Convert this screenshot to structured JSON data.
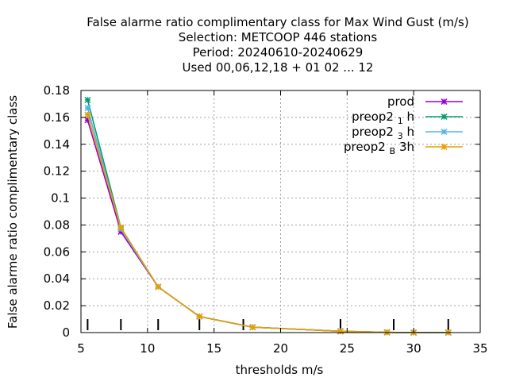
{
  "title_lines": [
    "False alarme ratio complimentary class  for Max Wind Gust (m/s)",
    "Selection: METCOOP    446 stations",
    "Period: 20240610-20240629",
    "Used  00,06,12,18 + 01 02 ... 12"
  ],
  "chart_data": {
    "type": "line",
    "xlabel": "thresholds m/s",
    "ylabel": "False alarme ratio complimentary class",
    "xlim": [
      5,
      35
    ],
    "ylim": [
      0,
      0.18
    ],
    "xticks": [
      5,
      10,
      15,
      20,
      25,
      30,
      35
    ],
    "yticks": [
      0,
      0.02,
      0.04,
      0.06,
      0.08,
      0.1,
      0.12,
      0.14,
      0.16,
      0.18
    ],
    "xticklabels": [
      "5",
      "10",
      "15",
      "20",
      "25",
      "30",
      "35"
    ],
    "yticklabels": [
      "0",
      "0.02",
      "0.04",
      "0.06",
      "0.08",
      "0.1",
      "0.12",
      "0.14",
      "0.16",
      "0.18"
    ],
    "grid": true,
    "legend_position": "top-right",
    "threshold_markers": [
      5.5,
      8,
      10.8,
      13.9,
      17.2,
      24.5,
      28.5,
      32.6
    ],
    "series": [
      {
        "name": "prod",
        "color": "#9400d3",
        "marker": "star",
        "x": [
          5.5,
          8,
          10.8,
          13.9,
          17.9,
          24.5,
          28,
          30,
          32.6
        ],
        "y": [
          0.158,
          0.075,
          0.034,
          0.012,
          0.004,
          0.001,
          0.0002,
          0.0,
          0.0
        ]
      },
      {
        "name": "preop2 1 h",
        "name_base": "preop2",
        "name_sub": "1",
        "name_rest": "h",
        "color": "#009e73",
        "marker": "star",
        "x": [
          5.5,
          8,
          10.8,
          13.9,
          17.9,
          24.5,
          28,
          30,
          32.6
        ],
        "y": [
          0.173,
          0.078,
          0.034,
          0.012,
          0.004,
          0.001,
          0.0002,
          0.0,
          0.0
        ]
      },
      {
        "name": "preop2 3 h",
        "name_base": "preop2",
        "name_sub": "3",
        "name_rest": "h",
        "color": "#56b4e9",
        "marker": "star",
        "x": [
          5.5,
          8,
          10.8,
          13.9,
          17.9,
          24.5,
          28,
          30,
          32.6
        ],
        "y": [
          0.167,
          0.077,
          0.034,
          0.012,
          0.004,
          0.001,
          0.0002,
          0.0,
          0.0
        ]
      },
      {
        "name": "preop2 B 3h",
        "name_base": "preop2",
        "name_sub": "B",
        "name_rest": "3h",
        "color": "#e69f00",
        "marker": "star",
        "x": [
          5.5,
          8,
          10.8,
          13.9,
          17.9,
          24.5,
          28,
          30,
          32.6
        ],
        "y": [
          0.162,
          0.078,
          0.034,
          0.012,
          0.004,
          0.001,
          0.0002,
          0.0,
          0.0
        ]
      }
    ]
  }
}
